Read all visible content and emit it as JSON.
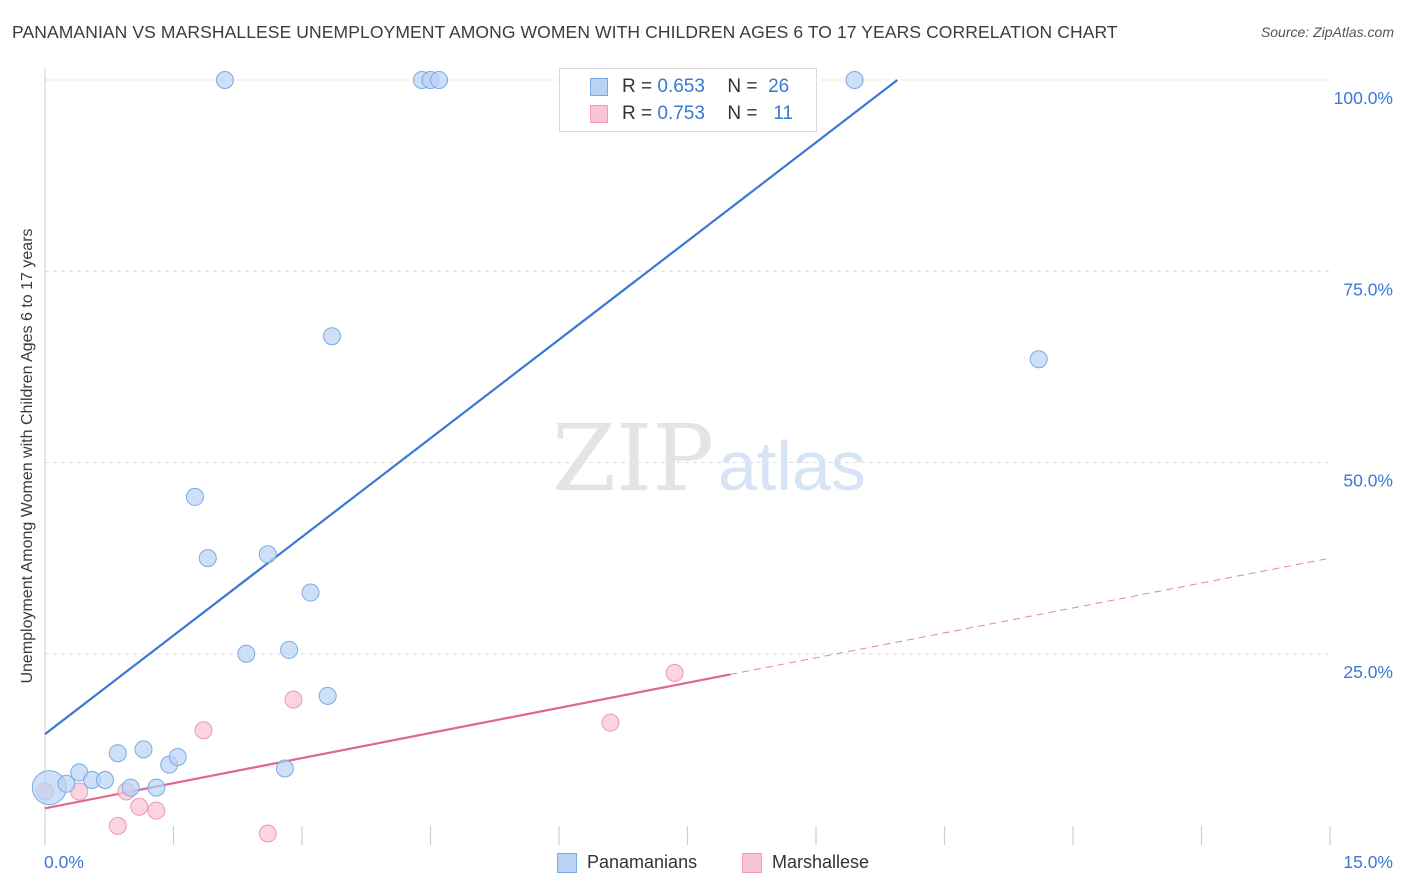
{
  "header": {
    "title": "PANAMANIAN VS MARSHALLESE UNEMPLOYMENT AMONG WOMEN WITH CHILDREN AGES 6 TO 17 YEARS CORRELATION CHART",
    "source": "Source: ZipAtlas.com"
  },
  "watermark": {
    "zip": "ZIP",
    "atlas": "atlas"
  },
  "legend": {
    "rows": [
      {
        "r_label": "R =",
        "r_value": "0.653",
        "n_label": "N =",
        "n_value": "26"
      },
      {
        "r_label": "R =",
        "r_value": "0.753",
        "n_label": "N =",
        "n_value": "11"
      }
    ]
  },
  "bottom_legend": {
    "series1": "Panamanians",
    "series2": "Marshallese"
  },
  "colors": {
    "blue_line": "#3a78d4",
    "blue_fill": "#b8d3f5",
    "blue_stroke": "#7aaae6",
    "pink_line": "#e0668f",
    "pink_fill": "#f9c5d6",
    "pink_stroke": "#ec9ab6",
    "tick_text": "#3a78d4",
    "grid": "#dcdcdc"
  },
  "chart_data": {
    "type": "scatter",
    "title": "PANAMANIAN VS MARSHALLESE UNEMPLOYMENT AMONG WOMEN WITH CHILDREN AGES 6 TO 17 YEARS CORRELATION CHART",
    "xlabel": "",
    "ylabel": "Unemployment Among Women with Children Ages 6 to 17 years",
    "xlim": [
      0,
      15
    ],
    "ylim": [
      0,
      102.5
    ],
    "x_tick_labels": [
      "0.0%",
      "15.0%"
    ],
    "y_ticks": [
      25,
      50,
      75,
      100
    ],
    "y_tick_labels": [
      "25.0%",
      "50.0%",
      "75.0%",
      "100.0%"
    ],
    "grid": true,
    "legend_position": "top-center",
    "series": [
      {
        "name": "Panamanians",
        "r": 0.653,
        "n": 26,
        "points": [
          [
            0.05,
            7.5
          ],
          [
            0.25,
            8.0
          ],
          [
            0.4,
            9.5
          ],
          [
            0.55,
            8.5
          ],
          [
            0.7,
            8.5
          ],
          [
            0.85,
            12.0
          ],
          [
            1.0,
            7.5
          ],
          [
            1.15,
            12.5
          ],
          [
            1.3,
            7.5
          ],
          [
            1.45,
            10.5
          ],
          [
            1.55,
            11.5
          ],
          [
            1.75,
            45.5
          ],
          [
            1.9,
            37.5
          ],
          [
            2.1,
            100.0
          ],
          [
            2.35,
            25.0
          ],
          [
            2.6,
            38.0
          ],
          [
            2.8,
            10.0
          ],
          [
            2.85,
            25.5
          ],
          [
            3.1,
            33.0
          ],
          [
            3.3,
            19.5
          ],
          [
            3.35,
            66.5
          ],
          [
            4.4,
            100.0
          ],
          [
            4.5,
            100.0
          ],
          [
            4.6,
            100.0
          ],
          [
            9.45,
            100.0
          ],
          [
            11.6,
            63.5
          ]
        ],
        "trend": {
          "x": [
            0,
            9.95
          ],
          "y": [
            14.5,
            100.0
          ]
        }
      },
      {
        "name": "Marshallese",
        "r": 0.753,
        "n": 11,
        "points": [
          [
            0.0,
            7.0
          ],
          [
            0.4,
            7.0
          ],
          [
            0.85,
            2.5
          ],
          [
            0.95,
            7.0
          ],
          [
            1.1,
            5.0
          ],
          [
            1.3,
            4.5
          ],
          [
            1.85,
            15.0
          ],
          [
            2.6,
            1.5
          ],
          [
            2.9,
            19.0
          ],
          [
            6.6,
            16.0
          ],
          [
            7.35,
            22.5
          ]
        ],
        "trend_solid": {
          "x": [
            0,
            8.0
          ],
          "y": [
            4.8,
            22.3
          ]
        },
        "trend_dashed": {
          "x": [
            8.0,
            15.0
          ],
          "y": [
            22.3,
            37.5
          ]
        }
      }
    ]
  }
}
